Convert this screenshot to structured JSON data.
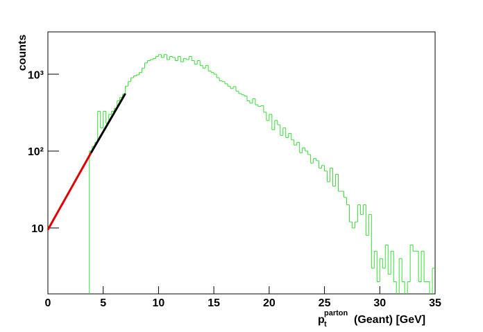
{
  "chart_data": {
    "type": "histogram",
    "ylabel": "counts",
    "xlabel": {
      "base": "p",
      "sub": "t",
      "sup": "parton",
      "rest": "(Geant) [GeV]"
    },
    "log_y": true,
    "xlim": [
      0,
      35
    ],
    "ylim": [
      1.39,
      3550
    ],
    "xticks": [
      0,
      5,
      10,
      15,
      20,
      25,
      30,
      35
    ],
    "yticks": [
      10,
      {
        "value": 100,
        "label": "10²"
      },
      {
        "value": 1000,
        "label": "10³"
      }
    ],
    "color": "#33dd33",
    "bins": [
      3.75,
      4,
      4.25,
      4.5,
      4.75,
      5,
      5.25,
      5.5,
      5.75,
      6,
      6.25,
      6.5,
      6.75,
      7,
      7.25,
      7.5,
      7.75,
      8,
      8.25,
      8.5,
      8.75,
      9,
      9.25,
      9.5,
      9.75,
      10,
      10.25,
      10.5,
      10.75,
      11,
      11.25,
      11.5,
      11.75,
      12,
      12.25,
      12.5,
      12.75,
      13,
      13.25,
      13.5,
      13.75,
      14,
      14.25,
      14.5,
      14.75,
      15,
      15.25,
      15.5,
      15.75,
      16,
      16.25,
      16.5,
      16.75,
      17,
      17.25,
      17.5,
      17.75,
      18,
      18.25,
      18.5,
      18.75,
      19,
      19.25,
      19.5,
      19.75,
      20,
      20.25,
      20.5,
      20.75,
      21,
      21.25,
      21.5,
      21.75,
      22,
      22.25,
      22.5,
      22.75,
      23,
      23.25,
      23.5,
      23.75,
      24,
      24.25,
      24.5,
      24.75,
      25,
      25.25,
      25.5,
      25.75,
      26,
      26.25,
      26.5,
      26.75,
      27,
      27.25,
      27.5,
      27.75,
      28,
      28.25,
      28.5,
      28.75,
      29,
      29.25,
      29.5,
      29.75,
      30,
      30.25,
      30.5,
      30.75,
      31,
      31.25,
      31.5,
      31.75,
      32,
      32.25,
      32.5,
      32.75,
      33,
      33.25,
      33.5,
      33.75,
      34,
      34.25,
      34.5,
      34.75,
      35
    ],
    "values": [
      100,
      115,
      130,
      330,
      200,
      330,
      230,
      300,
      330,
      360,
      450,
      500,
      550,
      700,
      800,
      900,
      950,
      980,
      1050,
      1200,
      1400,
      1500,
      1550,
      1600,
      1700,
      1800,
      1650,
      1800,
      1550,
      1700,
      1650,
      1500,
      1700,
      1450,
      1600,
      1550,
      1700,
      1500,
      1350,
      1500,
      1300,
      1200,
      1300,
      1100,
      1050,
      1000,
      900,
      820,
      800,
      750,
      700,
      650,
      690,
      600,
      560,
      540,
      520,
      450,
      420,
      480,
      400,
      380,
      390,
      320,
      250,
      300,
      190,
      250,
      220,
      160,
      200,
      150,
      170,
      140,
      120,
      130,
      95,
      110,
      100,
      90,
      70,
      80,
      75,
      60,
      65,
      55,
      40,
      60,
      35,
      50,
      30,
      30,
      25,
      20,
      12,
      10,
      12,
      20,
      15,
      20,
      8,
      15,
      3,
      5,
      2,
      4,
      3,
      6,
      2.5,
      5,
      2,
      null,
      4,
      2,
      null,
      2,
      6,
      5,
      5,
      2,
      5,
      2,
      2,
      null,
      3
    ],
    "fits": [
      {
        "color": "#e00000",
        "x": [
          0,
          3.9
        ],
        "values": [
          9.5,
          95
        ]
      },
      {
        "color": "#000000",
        "x": [
          3.9,
          7.0
        ],
        "values": [
          95,
          560
        ]
      }
    ]
  }
}
